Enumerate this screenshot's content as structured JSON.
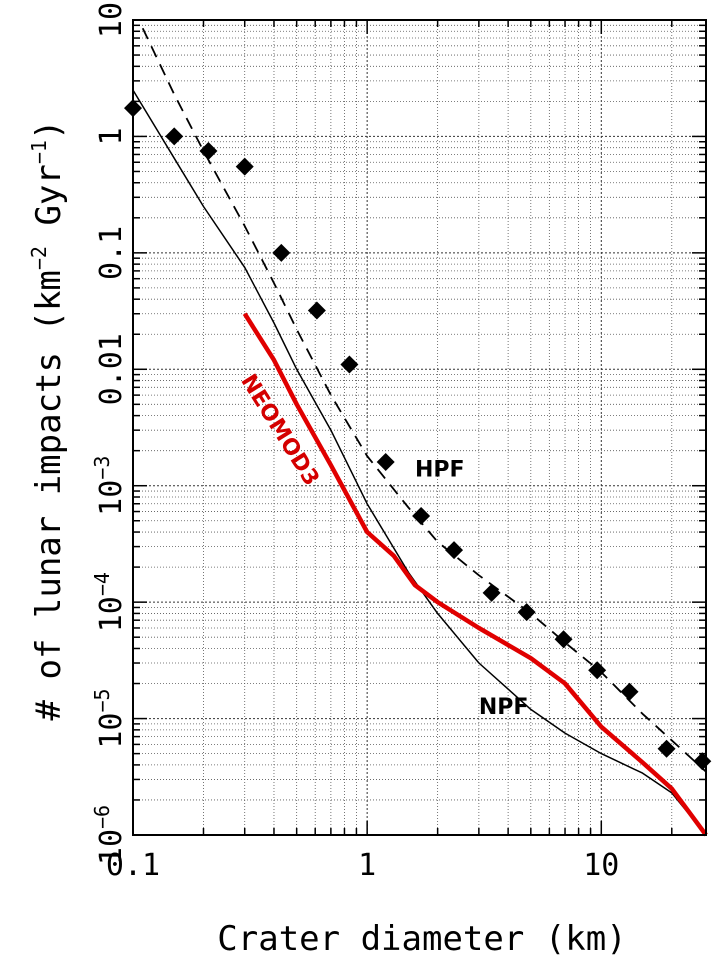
{
  "chart_data": {
    "type": "line",
    "xlabel": "Crater diameter (km)",
    "ylabel_parts": [
      "# of lunar impacts (km",
      "−2",
      " Gyr",
      "−1",
      ")"
    ],
    "xscale": "log",
    "yscale": "log",
    "xlim": [
      0.1,
      28
    ],
    "ylim": [
      1e-06,
      10
    ],
    "grid": true,
    "x_ticks": [
      {
        "value": 0.1,
        "label": "0.1"
      },
      {
        "value": 1,
        "label": "1"
      },
      {
        "value": 10,
        "label": "10"
      }
    ],
    "y_ticks": [
      {
        "value": 10,
        "label": "10"
      },
      {
        "value": 1,
        "label": "1"
      },
      {
        "value": 0.1,
        "label": "0.1"
      },
      {
        "value": 0.01,
        "label": "0.01"
      },
      {
        "value": 0.001,
        "base": "10",
        "exp": "−3"
      },
      {
        "value": 0.0001,
        "base": "10",
        "exp": "−4"
      },
      {
        "value": 1e-05,
        "base": "10",
        "exp": "−5"
      },
      {
        "value": 1e-06,
        "base": "10",
        "exp": "−6"
      }
    ],
    "series": [
      {
        "name": "NPF",
        "style": "solid",
        "color": "#000000",
        "x": [
          0.1,
          0.15,
          0.2,
          0.3,
          0.4,
          0.5,
          0.7,
          1.0,
          1.5,
          2.0,
          3.0,
          5.0,
          7.0,
          10,
          15,
          20,
          28
        ],
        "y": [
          2.5,
          0.65,
          0.25,
          0.075,
          0.025,
          0.01,
          0.003,
          0.0007,
          0.00018,
          8e-05,
          3e-05,
          1.2e-05,
          7.5e-06,
          5e-06,
          3.4e-06,
          2.3e-06,
          1e-06
        ]
      },
      {
        "name": "HPF",
        "style": "dashed",
        "color": "#000000",
        "x": [
          0.11,
          0.15,
          0.2,
          0.3,
          0.4,
          0.5,
          0.7,
          1.0,
          1.5,
          2.0,
          3.0,
          5.0,
          7.0,
          10,
          15,
          20,
          28
        ],
        "y": [
          8.5,
          2.3,
          0.75,
          0.17,
          0.055,
          0.022,
          0.006,
          0.0018,
          0.00065,
          0.00033,
          0.00017,
          8e-05,
          4.5e-05,
          2.5e-05,
          1.1e-05,
          6.5e-06,
          3.5e-06
        ]
      },
      {
        "name": "NEOMOD3",
        "style": "solid-thick",
        "color": "#e00000",
        "x": [
          0.3,
          0.4,
          0.5,
          0.7,
          1.0,
          1.3,
          1.6,
          2.0,
          3.0,
          5.0,
          7.0,
          10,
          15,
          20,
          28
        ],
        "y": [
          0.03,
          0.012,
          0.005,
          0.0015,
          0.0004,
          0.00025,
          0.00014,
          0.0001,
          6e-05,
          3.3e-05,
          2e-05,
          8.5e-06,
          4.2e-06,
          2.5e-06,
          1e-06
        ]
      },
      {
        "name": "",
        "style": "points",
        "marker": "diamond",
        "color": "#000000",
        "x": [
          0.1,
          0.15,
          0.21,
          0.3,
          0.43,
          0.61,
          0.84,
          1.2,
          1.7,
          2.35,
          3.4,
          4.8,
          6.9,
          9.6,
          13.2,
          19,
          27
        ],
        "y": [
          1.75,
          1.0,
          0.75,
          0.55,
          0.1,
          0.032,
          0.011,
          0.0016,
          0.00055,
          0.00028,
          0.00012,
          8.2e-05,
          4.8e-05,
          2.6e-05,
          1.7e-05,
          5.5e-06,
          4.3e-06
        ]
      }
    ],
    "annotations": [
      {
        "text": "HPF",
        "x": 1.6,
        "y": 0.0012,
        "color": "#000000"
      },
      {
        "text": "NPF",
        "x": 3.0,
        "y": 1.1e-05,
        "color": "#000000"
      },
      {
        "text": "NEOMOD3",
        "x": 0.4,
        "y": 0.0028,
        "color": "#d40000",
        "rotated": true
      }
    ]
  }
}
